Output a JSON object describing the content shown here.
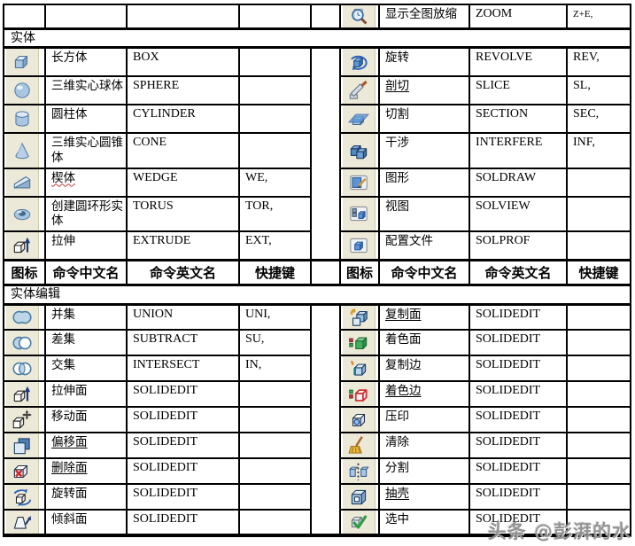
{
  "document": {
    "header_row": {
      "icon": "图标",
      "cn": "命令中文名",
      "en": "命令英文名",
      "key": "快捷键"
    },
    "sections": {
      "solid": "实体",
      "edit": "实体编辑"
    },
    "top_right": {
      "icon": "zoom-icon",
      "cn": "显示全图放缩",
      "en": "ZOOM",
      "key": "Z+E,"
    },
    "solid_left": [
      {
        "icon": "box-icon",
        "cn": "长方体",
        "en": "BOX",
        "key": ""
      },
      {
        "icon": "sphere-icon",
        "cn": "三维实心球体",
        "en": "SPHERE",
        "key": ""
      },
      {
        "icon": "cylinder-icon",
        "cn": "圆柱体",
        "en": "CYLINDER",
        "key": ""
      },
      {
        "icon": "cone-icon",
        "cn": "三维实心圆锥体",
        "en": "CONE",
        "key": ""
      },
      {
        "icon": "wedge-icon",
        "cn": "楔体",
        "en": "WEDGE",
        "key": "WE,",
        "wavy": true
      },
      {
        "icon": "torus-icon",
        "cn": "创建圆环形实体",
        "en": "TORUS",
        "key": "TOR,"
      },
      {
        "icon": "extrude-icon",
        "cn": "拉伸",
        "en": "EXTRUDE",
        "key": "EXT,"
      }
    ],
    "solid_right": [
      {
        "icon": "revolve-icon",
        "cn": "旋转",
        "en": "REVOLVE",
        "key": "REV,"
      },
      {
        "icon": "slice-icon",
        "cn": "剖切",
        "en": "SLICE",
        "key": "SL,",
        "underline": true
      },
      {
        "icon": "section-icon",
        "cn": "切割",
        "en": "SECTION",
        "key": "SEC,"
      },
      {
        "icon": "interfere-icon",
        "cn": "干涉",
        "en": "INTERFERE",
        "key": "INF,"
      },
      {
        "icon": "soldraw-icon",
        "cn": "图形",
        "en": "SOLDRAW",
        "key": ""
      },
      {
        "icon": "solview-icon",
        "cn": "视图",
        "en": "SOLVIEW",
        "key": ""
      },
      {
        "icon": "solprof-icon",
        "cn": "配置文件",
        "en": "SOLPROF",
        "key": ""
      }
    ],
    "edit_left": [
      {
        "icon": "union-icon",
        "cn": "并集",
        "en": "UNION",
        "key": "UNI,"
      },
      {
        "icon": "subtract-icon",
        "cn": "差集",
        "en": "SUBTRACT",
        "key": "SU,"
      },
      {
        "icon": "intersect-icon",
        "cn": "交集",
        "en": "INTERSECT",
        "key": "IN,"
      },
      {
        "icon": "extrude-face-icon",
        "cn": "拉伸面",
        "en": "SOLIDEDIT",
        "key": ""
      },
      {
        "icon": "move-face-icon",
        "cn": "移动面",
        "en": "SOLIDEDIT",
        "key": ""
      },
      {
        "icon": "offset-face-icon",
        "cn": "偏移面",
        "en": "SOLIDEDIT",
        "key": "",
        "underline": true
      },
      {
        "icon": "delete-face-icon",
        "cn": "删除面",
        "en": "SOLIDEDIT",
        "key": "",
        "underline": true
      },
      {
        "icon": "rotate-face-icon",
        "cn": "旋转面",
        "en": "SOLIDEDIT",
        "key": ""
      },
      {
        "icon": "taper-face-icon",
        "cn": "倾斜面",
        "en": "SOLIDEDIT",
        "key": ""
      }
    ],
    "edit_right": [
      {
        "icon": "copy-face-icon",
        "cn": "复制面",
        "en": "SOLIDEDIT",
        "key": "",
        "underline": true
      },
      {
        "icon": "color-face-icon",
        "cn": "着色面",
        "en": "SOLIDEDIT",
        "key": ""
      },
      {
        "icon": "copy-edge-icon",
        "cn": "复制边",
        "en": "SOLIDEDIT",
        "key": ""
      },
      {
        "icon": "color-edge-icon",
        "cn": "着色边",
        "en": "SOLIDEDIT",
        "key": "",
        "underline": true
      },
      {
        "icon": "imprint-icon",
        "cn": "压印",
        "en": "SOLIDEDIT",
        "key": ""
      },
      {
        "icon": "clean-icon",
        "cn": "清除",
        "en": "SOLIDEDIT",
        "key": ""
      },
      {
        "icon": "separate-icon",
        "cn": "分割",
        "en": "SOLIDEDIT",
        "key": ""
      },
      {
        "icon": "shell-icon",
        "cn": "抽壳",
        "en": "SOLIDEDIT",
        "key": "",
        "underline": true
      },
      {
        "icon": "check-icon",
        "cn": "选中",
        "en": "SOLIDEDIT",
        "key": ""
      }
    ],
    "watermark": "头条 @彭湃的水",
    "colors": {
      "icon_cell_bg": "#ece9d8",
      "border": "#000000",
      "watermark": "#8f8f8f"
    }
  }
}
